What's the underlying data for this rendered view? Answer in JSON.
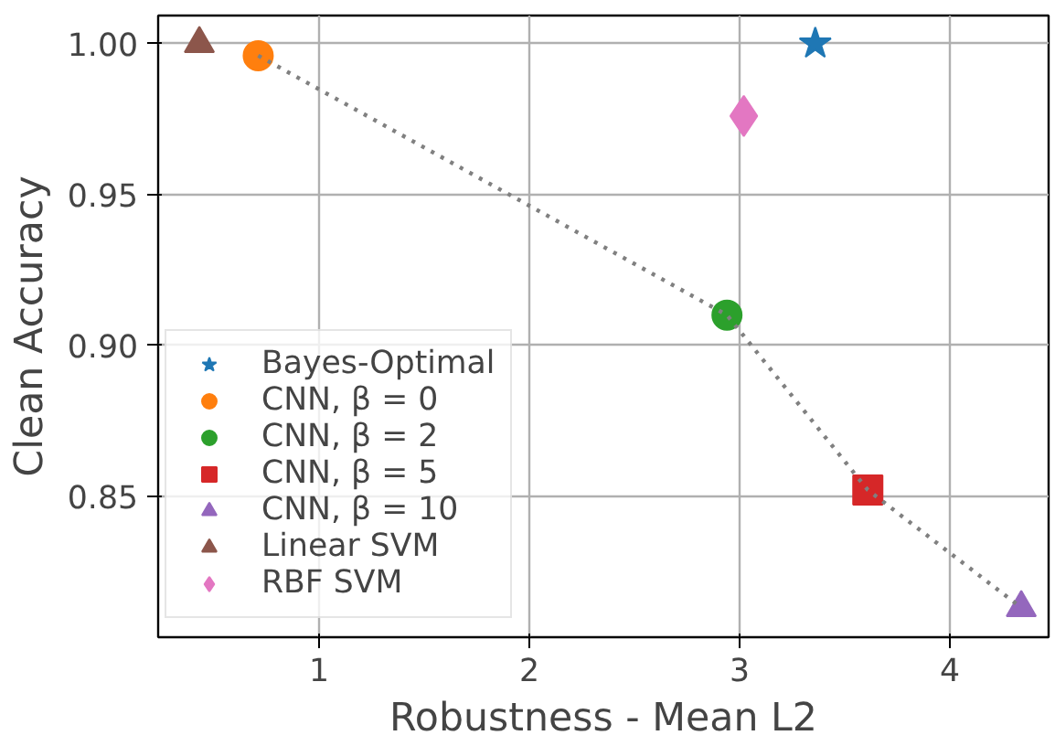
{
  "chart_data": {
    "type": "scatter",
    "xlabel": "Robustness - Mean L2",
    "ylabel": "Clean Accuracy",
    "xlim": [
      0.234,
      4.47
    ],
    "ylim": [
      0.8032,
      1.0093
    ],
    "xticks": [
      1,
      2,
      3,
      4
    ],
    "yticks": [
      {
        "value": 0.85,
        "label": "0.85"
      },
      {
        "value": 0.9,
        "label": "0.90"
      },
      {
        "value": 0.95,
        "label": "0.95"
      },
      {
        "value": 1.0,
        "label": "1.00"
      }
    ],
    "grid": true,
    "legend": "left",
    "series": [
      {
        "name": "Bayes-Optimal",
        "color": "#1f77b4",
        "marker": "star",
        "x": [
          3.36
        ],
        "values": [
          1.0
        ]
      },
      {
        "name": "CNN, β = 0",
        "color": "#ff7f0e",
        "marker": "circle",
        "x": [
          0.71
        ],
        "values": [
          0.996
        ]
      },
      {
        "name": "CNN, β = 2",
        "color": "#2ca02c",
        "marker": "circle",
        "x": [
          2.94
        ],
        "values": [
          0.91
        ]
      },
      {
        "name": "CNN, β = 5",
        "color": "#d62728",
        "marker": "square",
        "x": [
          3.61
        ],
        "values": [
          0.852
        ]
      },
      {
        "name": "CNN, β = 10",
        "color": "#9467bd",
        "marker": "triangle",
        "x": [
          4.34
        ],
        "values": [
          0.813
        ]
      },
      {
        "name": "Linear SVM",
        "color": "#8c564b",
        "marker": "triangle",
        "x": [
          0.43
        ],
        "values": [
          1.0
        ]
      },
      {
        "name": "RBF SVM",
        "color": "#e377c2",
        "marker": "diamond",
        "x": [
          3.02
        ],
        "values": [
          0.976
        ]
      },
      {
        "type": "line",
        "color": "#808080",
        "line_style": "dotted",
        "x": [
          0.71,
          2.94,
          3.61,
          4.34
        ],
        "values": [
          0.996,
          0.91,
          0.852,
          0.813
        ]
      }
    ]
  }
}
